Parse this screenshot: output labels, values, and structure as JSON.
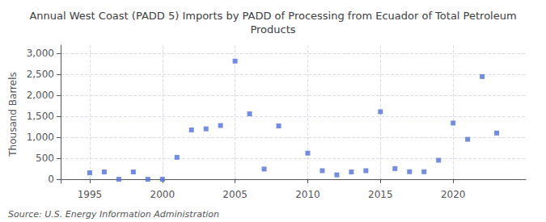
{
  "chart_data": {
    "type": "scatter",
    "title": "Annual West Coast (PADD 5) Imports by PADD of Processing from Ecuador of Total Petroleum\nProducts",
    "y_label": "Thousand Barrels",
    "annotations": [
      "Source: U.S. Energy Information Administration"
    ],
    "x": [
      1995,
      1996,
      1997,
      1998,
      1999,
      2000,
      2001,
      2002,
      2003,
      2004,
      2005,
      2006,
      2007,
      2008,
      2010,
      2011,
      2012,
      2013,
      2014,
      2015,
      2016,
      2017,
      2018,
      2019,
      2020,
      2021,
      2022,
      2023
    ],
    "values": [
      150,
      170,
      -5,
      170,
      -5,
      -5,
      520,
      1175,
      1200,
      1280,
      2820,
      1560,
      240,
      1270,
      620,
      200,
      100,
      170,
      200,
      1610,
      250,
      175,
      175,
      450,
      1340,
      950,
      2450,
      1100
    ],
    "xlim": [
      1993.0,
      2025.0
    ],
    "ylim": [
      -100,
      3200
    ],
    "xticks": [
      1995,
      2000,
      2005,
      2010,
      2015,
      2020
    ],
    "yticks": [
      0,
      500,
      {
        "value": 1000,
        "label": "1,000"
      },
      {
        "value": 1500,
        "label": "1,500"
      },
      {
        "value": 2000,
        "label": "2,000"
      },
      {
        "value": 2500,
        "label": "2,500"
      },
      {
        "value": 3000,
        "label": "3,000"
      }
    ],
    "marker": "square",
    "grid": true
  }
}
